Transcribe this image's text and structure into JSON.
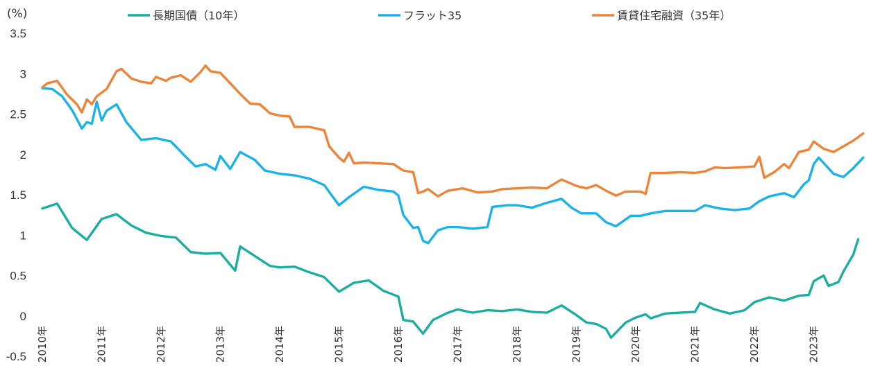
{
  "chart_data": {
    "type": "line",
    "y_unit": "(%)",
    "ylim": [
      -0.5,
      3.5
    ],
    "yticks": [
      -0.5,
      0,
      0.5,
      1,
      1.5,
      2,
      2.5,
      3,
      3.5
    ],
    "ytick_labels": [
      "-0.5",
      "0",
      "0.5",
      "1",
      "1.5",
      "2",
      "2.5",
      "3",
      "3.5"
    ],
    "x_start": "2010-01",
    "x_end": "2023-12",
    "xtick_labels": [
      "2010年",
      "2011年",
      "2012年",
      "2013年",
      "2014年",
      "2015年",
      "2016年",
      "2017年",
      "2018年",
      "2019年",
      "2020年",
      "2021年",
      "2022年",
      "2023年"
    ],
    "grid": false,
    "legend_position": "top",
    "series": [
      {
        "name": "長期国債（10年）",
        "color": "#1AAE9F",
        "points": [
          [
            "2010-01",
            1.33
          ],
          [
            "2010-04",
            1.39
          ],
          [
            "2010-07",
            1.09
          ],
          [
            "2010-10",
            0.94
          ],
          [
            "2011-01",
            1.2
          ],
          [
            "2011-04",
            1.26
          ],
          [
            "2011-07",
            1.12
          ],
          [
            "2011-10",
            1.03
          ],
          [
            "2012-01",
            0.99
          ],
          [
            "2012-04",
            0.97
          ],
          [
            "2012-07",
            0.79
          ],
          [
            "2012-10",
            0.77
          ],
          [
            "2013-01",
            0.78
          ],
          [
            "2013-04",
            0.56
          ],
          [
            "2013-05",
            0.86
          ],
          [
            "2013-08",
            0.74
          ],
          [
            "2013-11",
            0.62
          ],
          [
            "2014-01",
            0.6
          ],
          [
            "2014-04",
            0.61
          ],
          [
            "2014-07",
            0.54
          ],
          [
            "2014-10",
            0.48
          ],
          [
            "2015-01",
            0.3
          ],
          [
            "2015-04",
            0.41
          ],
          [
            "2015-07",
            0.44
          ],
          [
            "2015-10",
            0.31
          ],
          [
            "2016-01",
            0.24
          ],
          [
            "2016-02",
            -0.05
          ],
          [
            "2016-04",
            -0.07
          ],
          [
            "2016-06",
            -0.22
          ],
          [
            "2016-08",
            -0.05
          ],
          [
            "2016-11",
            0.04
          ],
          [
            "2017-01",
            0.08
          ],
          [
            "2017-04",
            0.04
          ],
          [
            "2017-07",
            0.07
          ],
          [
            "2017-10",
            0.06
          ],
          [
            "2018-01",
            0.08
          ],
          [
            "2018-04",
            0.05
          ],
          [
            "2018-07",
            0.04
          ],
          [
            "2018-10",
            0.13
          ],
          [
            "2019-01",
            0.01
          ],
          [
            "2019-03",
            -0.08
          ],
          [
            "2019-05",
            -0.1
          ],
          [
            "2019-07",
            -0.16
          ],
          [
            "2019-08",
            -0.27
          ],
          [
            "2019-11",
            -0.08
          ],
          [
            "2020-01",
            -0.02
          ],
          [
            "2020-03",
            0.02
          ],
          [
            "2020-04",
            -0.03
          ],
          [
            "2020-07",
            0.03
          ],
          [
            "2020-10",
            0.04
          ],
          [
            "2021-01",
            0.05
          ],
          [
            "2021-02",
            0.16
          ],
          [
            "2021-05",
            0.08
          ],
          [
            "2021-08",
            0.03
          ],
          [
            "2021-11",
            0.07
          ],
          [
            "2022-01",
            0.17
          ],
          [
            "2022-04",
            0.23
          ],
          [
            "2022-07",
            0.19
          ],
          [
            "2022-10",
            0.25
          ],
          [
            "2022-12",
            0.26
          ],
          [
            "2023-01",
            0.43
          ],
          [
            "2023-03",
            0.5
          ],
          [
            "2023-04",
            0.37
          ],
          [
            "2023-06",
            0.42
          ],
          [
            "2023-07",
            0.55
          ],
          [
            "2023-09",
            0.76
          ],
          [
            "2023-10",
            0.95
          ]
        ]
      },
      {
        "name": "フラット35",
        "color": "#1AB2E8",
        "points": [
          [
            "2010-01",
            2.82
          ],
          [
            "2010-03",
            2.81
          ],
          [
            "2010-05",
            2.72
          ],
          [
            "2010-07",
            2.55
          ],
          [
            "2010-09",
            2.32
          ],
          [
            "2010-10",
            2.4
          ],
          [
            "2010-11",
            2.38
          ],
          [
            "2010-12",
            2.65
          ],
          [
            "2011-01",
            2.42
          ],
          [
            "2011-02",
            2.54
          ],
          [
            "2011-04",
            2.62
          ],
          [
            "2011-06",
            2.4
          ],
          [
            "2011-09",
            2.18
          ],
          [
            "2011-12",
            2.2
          ],
          [
            "2012-03",
            2.16
          ],
          [
            "2012-06",
            1.97
          ],
          [
            "2012-08",
            1.85
          ],
          [
            "2012-10",
            1.88
          ],
          [
            "2012-12",
            1.81
          ],
          [
            "2013-01",
            1.98
          ],
          [
            "2013-03",
            1.82
          ],
          [
            "2013-05",
            2.03
          ],
          [
            "2013-08",
            1.93
          ],
          [
            "2013-10",
            1.8
          ],
          [
            "2014-01",
            1.76
          ],
          [
            "2014-04",
            1.74
          ],
          [
            "2014-07",
            1.7
          ],
          [
            "2014-10",
            1.62
          ],
          [
            "2015-01",
            1.37
          ],
          [
            "2015-03",
            1.47
          ],
          [
            "2015-06",
            1.6
          ],
          [
            "2015-09",
            1.56
          ],
          [
            "2015-12",
            1.54
          ],
          [
            "2016-01",
            1.49
          ],
          [
            "2016-02",
            1.25
          ],
          [
            "2016-04",
            1.09
          ],
          [
            "2016-05",
            1.1
          ],
          [
            "2016-06",
            0.93
          ],
          [
            "2016-07",
            0.9
          ],
          [
            "2016-09",
            1.06
          ],
          [
            "2016-11",
            1.1
          ],
          [
            "2017-01",
            1.1
          ],
          [
            "2017-04",
            1.08
          ],
          [
            "2017-07",
            1.1
          ],
          [
            "2017-08",
            1.35
          ],
          [
            "2017-11",
            1.37
          ],
          [
            "2018-01",
            1.37
          ],
          [
            "2018-04",
            1.34
          ],
          [
            "2018-07",
            1.4
          ],
          [
            "2018-10",
            1.45
          ],
          [
            "2018-12",
            1.34
          ],
          [
            "2019-02",
            1.27
          ],
          [
            "2019-05",
            1.27
          ],
          [
            "2019-07",
            1.16
          ],
          [
            "2019-09",
            1.11
          ],
          [
            "2019-12",
            1.24
          ],
          [
            "2020-02",
            1.24
          ],
          [
            "2020-04",
            1.27
          ],
          [
            "2020-07",
            1.3
          ],
          [
            "2020-10",
            1.3
          ],
          [
            "2021-01",
            1.3
          ],
          [
            "2021-03",
            1.37
          ],
          [
            "2021-06",
            1.33
          ],
          [
            "2021-09",
            1.31
          ],
          [
            "2021-12",
            1.33
          ],
          [
            "2022-02",
            1.42
          ],
          [
            "2022-04",
            1.48
          ],
          [
            "2022-07",
            1.52
          ],
          [
            "2022-09",
            1.47
          ],
          [
            "2022-11",
            1.63
          ],
          [
            "2022-12",
            1.68
          ],
          [
            "2023-01",
            1.88
          ],
          [
            "2023-02",
            1.96
          ],
          [
            "2023-05",
            1.76
          ],
          [
            "2023-07",
            1.72
          ],
          [
            "2023-09",
            1.83
          ],
          [
            "2023-11",
            1.96
          ]
        ]
      },
      {
        "name": "賃貸住宅融資（35年）",
        "color": "#EC8439",
        "points": [
          [
            "2010-01",
            2.83
          ],
          [
            "2010-02",
            2.88
          ],
          [
            "2010-04",
            2.91
          ],
          [
            "2010-06",
            2.74
          ],
          [
            "2010-08",
            2.62
          ],
          [
            "2010-09",
            2.52
          ],
          [
            "2010-10",
            2.68
          ],
          [
            "2010-11",
            2.62
          ],
          [
            "2010-12",
            2.72
          ],
          [
            "2011-02",
            2.81
          ],
          [
            "2011-04",
            3.03
          ],
          [
            "2011-05",
            3.06
          ],
          [
            "2011-07",
            2.94
          ],
          [
            "2011-09",
            2.9
          ],
          [
            "2011-11",
            2.88
          ],
          [
            "2011-12",
            2.96
          ],
          [
            "2012-02",
            2.91
          ],
          [
            "2012-03",
            2.95
          ],
          [
            "2012-05",
            2.98
          ],
          [
            "2012-07",
            2.9
          ],
          [
            "2012-09",
            3.02
          ],
          [
            "2012-10",
            3.1
          ],
          [
            "2012-11",
            3.03
          ],
          [
            "2013-01",
            3.01
          ],
          [
            "2013-03",
            2.88
          ],
          [
            "2013-05",
            2.75
          ],
          [
            "2013-07",
            2.63
          ],
          [
            "2013-09",
            2.62
          ],
          [
            "2013-11",
            2.51
          ],
          [
            "2014-01",
            2.48
          ],
          [
            "2014-03",
            2.47
          ],
          [
            "2014-04",
            2.34
          ],
          [
            "2014-07",
            2.34
          ],
          [
            "2014-10",
            2.3
          ],
          [
            "2014-11",
            2.1
          ],
          [
            "2015-01",
            1.96
          ],
          [
            "2015-02",
            1.91
          ],
          [
            "2015-03",
            2.02
          ],
          [
            "2015-04",
            1.89
          ],
          [
            "2015-06",
            1.9
          ],
          [
            "2015-09",
            1.89
          ],
          [
            "2015-12",
            1.88
          ],
          [
            "2016-01",
            1.84
          ],
          [
            "2016-02",
            1.8
          ],
          [
            "2016-04",
            1.78
          ],
          [
            "2016-05",
            1.52
          ],
          [
            "2016-06",
            1.54
          ],
          [
            "2016-07",
            1.57
          ],
          [
            "2016-09",
            1.48
          ],
          [
            "2016-11",
            1.55
          ],
          [
            "2017-02",
            1.58
          ],
          [
            "2017-05",
            1.53
          ],
          [
            "2017-08",
            1.54
          ],
          [
            "2017-10",
            1.57
          ],
          [
            "2018-01",
            1.58
          ],
          [
            "2018-04",
            1.59
          ],
          [
            "2018-07",
            1.58
          ],
          [
            "2018-10",
            1.69
          ],
          [
            "2019-01",
            1.61
          ],
          [
            "2019-03",
            1.58
          ],
          [
            "2019-05",
            1.62
          ],
          [
            "2019-07",
            1.55
          ],
          [
            "2019-09",
            1.49
          ],
          [
            "2019-11",
            1.54
          ],
          [
            "2020-02",
            1.54
          ],
          [
            "2020-03",
            1.51
          ],
          [
            "2020-04",
            1.77
          ],
          [
            "2020-07",
            1.77
          ],
          [
            "2020-10",
            1.78
          ],
          [
            "2021-01",
            1.77
          ],
          [
            "2021-03",
            1.79
          ],
          [
            "2021-05",
            1.84
          ],
          [
            "2021-07",
            1.83
          ],
          [
            "2021-10",
            1.84
          ],
          [
            "2022-01",
            1.85
          ],
          [
            "2022-02",
            1.97
          ],
          [
            "2022-03",
            1.71
          ],
          [
            "2022-05",
            1.78
          ],
          [
            "2022-07",
            1.88
          ],
          [
            "2022-08",
            1.83
          ],
          [
            "2022-10",
            2.03
          ],
          [
            "2022-12",
            2.06
          ],
          [
            "2023-01",
            2.16
          ],
          [
            "2023-03",
            2.07
          ],
          [
            "2023-05",
            2.03
          ],
          [
            "2023-07",
            2.1
          ],
          [
            "2023-09",
            2.17
          ],
          [
            "2023-11",
            2.26
          ]
        ]
      }
    ]
  }
}
